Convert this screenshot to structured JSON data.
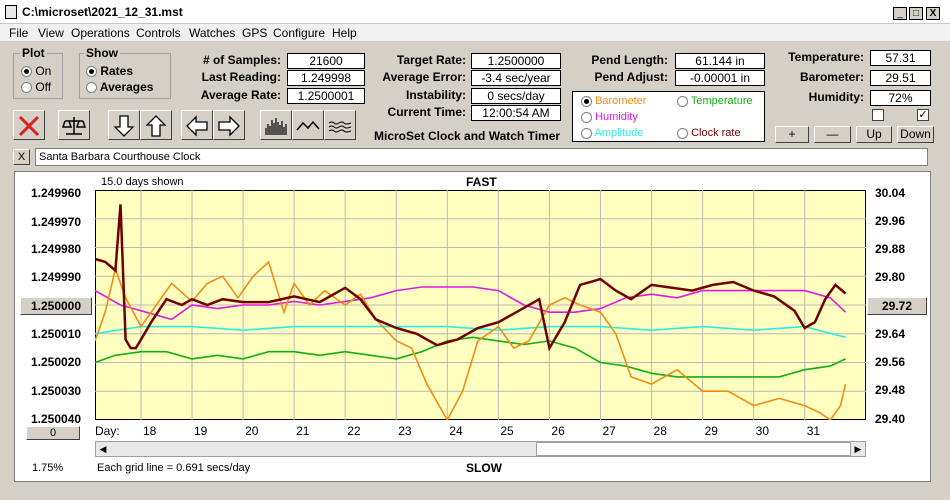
{
  "window": {
    "title": "C:\\microset\\2021_12_31.mst",
    "min": "_",
    "max": "□",
    "close": "X"
  },
  "menu": [
    "File",
    "View",
    "Operations",
    "Controls",
    "Watches",
    "GPS",
    "Configure",
    "Help"
  ],
  "plot": {
    "title": "Plot",
    "on": "On",
    "off": "Off",
    "selected": "On"
  },
  "show": {
    "title": "Show",
    "rates": "Rates",
    "averages": "Averages",
    "selected": "Rates"
  },
  "stats": {
    "samples_label": "# of Samples:",
    "samples": "21600",
    "last_label": "Last Reading:",
    "last": "1.249998",
    "avg_label": "Average Rate:",
    "avg": "1.2500001"
  },
  "rates": {
    "target_label": "Target Rate:",
    "target": "1.2500000",
    "avgerr_label": "Average Error:",
    "avgerr": "-3.4 sec/year",
    "instab_label": "Instability:",
    "instab": "0 secs/day",
    "time_label": "Current Time:",
    "time": "12:00:54 AM"
  },
  "pend": {
    "length_label": "Pend Length:",
    "length": "61.144 in",
    "adjust_label": "Pend Adjust:",
    "adjust": "-0.00001 in"
  },
  "sensors": {
    "temp_label": "Temperature:",
    "temp": "57.31",
    "baro_label": "Barometer:",
    "baro": "29.51",
    "hum_label": "Humidity:",
    "hum": "72%"
  },
  "overlay": {
    "barometer": "Barometer",
    "temperature": "Temperature",
    "humidity": "Humidity",
    "amplitude": "Amplitude",
    "clockrate": "Clock rate",
    "selected": "Barometer"
  },
  "app_label": "MicroSet Clock and Watch Timer",
  "scale_buttons": {
    "plus": "+",
    "minus": "—",
    "up": "Up",
    "down": "Down"
  },
  "clock_name": "Santa Barbara Courthouse Clock",
  "clear": "X",
  "colors": {
    "barometer": "#f08c14",
    "temperature": "#10b010",
    "humidity": "#e018e0",
    "amplitude": "#30e8e8",
    "clockrate": "#700000",
    "plot_bg": "#ffffc0"
  },
  "chart": {
    "top_text": "FAST",
    "bottom_text": "SLOW",
    "days_shown": "15.0 days shown",
    "grid_note": "Each grid line = 0.691 secs/day",
    "day_label": "Day:",
    "percent": "1.75%",
    "left_button": "1.250000",
    "right_button": "29.72",
    "bottom_button": "0"
  },
  "chart_data": {
    "type": "line",
    "left_axis": {
      "ticks": [
        "1.249960",
        "1.249970",
        "1.249980",
        "1.249990",
        "1.250000",
        "1.250010",
        "1.250020",
        "1.250030",
        "1.250040"
      ],
      "range": [
        1.24996,
        1.25004
      ],
      "inverted": true
    },
    "right_axis": {
      "ticks": [
        "30.04",
        "29.96",
        "29.88",
        "29.80",
        "29.72",
        "29.64",
        "29.56",
        "29.48",
        "29.40"
      ],
      "range": [
        29.4,
        30.04
      ]
    },
    "x_ticks": [
      "18",
      "19",
      "20",
      "21",
      "22",
      "23",
      "24",
      "25",
      "26",
      "27",
      "28",
      "29",
      "30",
      "31"
    ],
    "x_range": [
      17.1,
      32.2
    ],
    "series": [
      {
        "name": "Clock rate",
        "axis": "left",
        "color": "#700000",
        "x": [
          17.1,
          17.3,
          17.5,
          17.6,
          17.7,
          17.8,
          17.9,
          18.0,
          18.2,
          18.5,
          18.8,
          19.0,
          19.3,
          19.6,
          20.0,
          20.5,
          21.0,
          21.5,
          22.0,
          22.3,
          22.6,
          23.0,
          23.4,
          23.8,
          24.2,
          24.6,
          25.0,
          25.4,
          25.8,
          26.0,
          26.3,
          26.6,
          27.0,
          27.3,
          27.6,
          28.0,
          28.4,
          28.8,
          29.2,
          29.6,
          30.0,
          30.4,
          30.8,
          31.0,
          31.2,
          31.4,
          31.6,
          31.8
        ],
        "y": [
          1.249984,
          1.249985,
          1.249988,
          1.249965,
          1.250012,
          1.250015,
          1.250015,
          1.250012,
          1.250006,
          1.249998,
          1.25,
          1.249998,
          1.25,
          1.249998,
          1.249999,
          1.249999,
          1.249997,
          1.249999,
          1.249994,
          1.249998,
          1.250005,
          1.250008,
          1.25001,
          1.250014,
          1.250012,
          1.250008,
          1.250006,
          1.250002,
          1.249998,
          1.250015,
          1.250006,
          1.249993,
          1.249991,
          1.249995,
          1.249998,
          1.249993,
          1.249994,
          1.249995,
          1.249993,
          1.249992,
          1.249995,
          1.249997,
          1.250002,
          1.250008,
          1.250006,
          1.249998,
          1.249993,
          1.249996
        ]
      },
      {
        "name": "Barometer",
        "axis": "right",
        "color": "#f08c14",
        "x": [
          17.1,
          17.3,
          17.5,
          17.7,
          18.0,
          18.3,
          18.6,
          19.0,
          19.3,
          19.6,
          19.9,
          20.2,
          20.5,
          20.8,
          21.0,
          21.3,
          21.6,
          22.0,
          22.3,
          22.6,
          23.0,
          23.3,
          23.6,
          24.0,
          24.3,
          24.6,
          25.0,
          25.3,
          25.6,
          26.0,
          26.3,
          26.6,
          27.0,
          27.3,
          27.6,
          28.0,
          28.5,
          29.0,
          29.5,
          30.0,
          30.5,
          31.0,
          31.3,
          31.5,
          31.7,
          31.8
        ],
        "y": [
          29.62,
          29.7,
          29.82,
          29.74,
          29.66,
          29.72,
          29.78,
          29.73,
          29.78,
          29.8,
          29.74,
          29.8,
          29.84,
          29.7,
          29.78,
          29.72,
          29.76,
          29.72,
          29.75,
          29.68,
          29.62,
          29.6,
          29.5,
          29.4,
          29.48,
          29.62,
          29.66,
          29.6,
          29.62,
          29.72,
          29.74,
          29.72,
          29.7,
          29.64,
          29.52,
          29.5,
          29.54,
          29.48,
          29.48,
          29.44,
          29.46,
          29.44,
          29.42,
          29.4,
          29.44,
          29.5
        ]
      },
      {
        "name": "Humidity",
        "axis": "right",
        "color": "#e018e0",
        "x": [
          17.1,
          17.6,
          18.1,
          18.6,
          19.0,
          19.5,
          20.0,
          20.5,
          21.0,
          21.5,
          22.0,
          22.5,
          23.0,
          23.5,
          24.0,
          24.5,
          25.0,
          25.5,
          26.0,
          26.5,
          27.0,
          27.5,
          28.0,
          28.5,
          29.0,
          29.5,
          30.0,
          30.5,
          31.0,
          31.5,
          31.8
        ],
        "y": [
          29.76,
          29.72,
          29.7,
          29.68,
          29.72,
          29.71,
          29.72,
          29.72,
          29.73,
          29.72,
          29.73,
          29.74,
          29.76,
          29.77,
          29.77,
          29.77,
          29.76,
          29.72,
          29.7,
          29.7,
          29.71,
          29.74,
          29.75,
          29.74,
          29.76,
          29.76,
          29.76,
          29.76,
          29.76,
          29.74,
          29.7
        ]
      },
      {
        "name": "Amplitude",
        "axis": "right",
        "color": "#30e8e8",
        "x": [
          17.1,
          18.0,
          19.0,
          20.0,
          21.0,
          22.0,
          23.0,
          24.0,
          25.0,
          26.0,
          27.0,
          28.0,
          29.0,
          30.0,
          31.0,
          31.8
        ],
        "y": [
          29.64,
          29.66,
          29.66,
          29.65,
          29.66,
          29.66,
          29.66,
          29.66,
          29.65,
          29.66,
          29.66,
          29.65,
          29.66,
          29.65,
          29.66,
          29.63
        ]
      },
      {
        "name": "Temperature",
        "axis": "right",
        "color": "#10b010",
        "x": [
          17.1,
          17.5,
          18.0,
          18.5,
          19.0,
          19.5,
          20.0,
          20.5,
          21.0,
          21.5,
          22.0,
          22.5,
          23.0,
          23.5,
          24.0,
          24.5,
          25.0,
          25.5,
          26.0,
          26.5,
          27.0,
          27.5,
          28.0,
          28.5,
          29.0,
          29.5,
          30.0,
          30.5,
          31.0,
          31.5,
          31.8
        ],
        "y": [
          29.56,
          29.58,
          29.59,
          29.59,
          29.57,
          29.58,
          29.57,
          29.59,
          29.59,
          29.58,
          29.59,
          29.58,
          29.57,
          29.59,
          29.62,
          29.63,
          29.62,
          29.61,
          29.62,
          29.6,
          29.56,
          29.55,
          29.53,
          29.52,
          29.52,
          29.52,
          29.52,
          29.52,
          29.54,
          29.55,
          29.57
        ]
      }
    ]
  }
}
